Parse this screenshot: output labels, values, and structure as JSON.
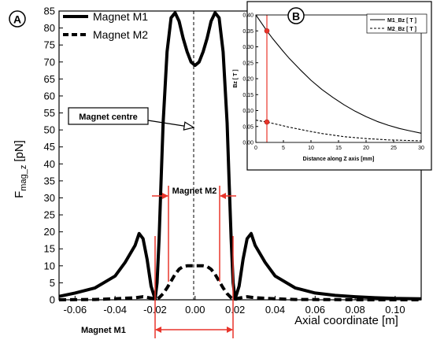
{
  "chart_data": [
    {
      "panel": "A",
      "type": "line",
      "xlabel": "Axial coordinate [m]",
      "ylabel_main": "F",
      "ylabel_sub": "mag_z",
      "ylabel_unit": "[pN]",
      "xlim": [
        -0.068,
        0.113
      ],
      "ylim": [
        0,
        85
      ],
      "x_ticks": [
        "-0.06",
        "-0.04",
        "-0.02",
        "0.00",
        "0.02",
        "0.04",
        "0.06",
        "0.08",
        "0.10"
      ],
      "x_tick_values": [
        -0.06,
        -0.04,
        -0.02,
        0.0,
        0.02,
        0.04,
        0.06,
        0.08,
        0.1
      ],
      "y_ticks": [
        "0",
        "5",
        "10",
        "15",
        "20",
        "25",
        "30",
        "35",
        "40",
        "45",
        "50",
        "55",
        "60",
        "65",
        "70",
        "75",
        "80",
        "85"
      ],
      "y_tick_values": [
        0,
        5,
        10,
        15,
        20,
        25,
        30,
        35,
        40,
        45,
        50,
        55,
        60,
        65,
        70,
        75,
        80,
        85
      ],
      "legend_position": "top-left",
      "series": [
        {
          "name": "Magnet M1",
          "style": "solid",
          "x": [
            -0.068,
            -0.06,
            -0.05,
            -0.04,
            -0.035,
            -0.03,
            -0.028,
            -0.026,
            -0.024,
            -0.022,
            -0.02,
            -0.019,
            -0.018,
            -0.017,
            -0.016,
            -0.014,
            -0.012,
            -0.01,
            -0.008,
            -0.006,
            -0.004,
            -0.002,
            0.0,
            0.002,
            0.004,
            0.006,
            0.008,
            0.01,
            0.012,
            0.014,
            0.016,
            0.017,
            0.018,
            0.019,
            0.02,
            0.022,
            0.024,
            0.026,
            0.028,
            0.03,
            0.035,
            0.04,
            0.05,
            0.06,
            0.07,
            0.08,
            0.09,
            0.1,
            0.113
          ],
          "y": [
            1,
            2,
            3.5,
            7,
            11,
            16,
            19.5,
            18,
            12,
            4,
            0.2,
            5,
            18,
            35,
            52,
            73,
            83,
            84.5,
            82,
            77,
            73,
            70,
            69,
            70,
            73,
            77,
            82,
            84.5,
            83,
            73,
            52,
            35,
            18,
            5,
            0.2,
            4,
            12,
            18,
            19.5,
            16,
            11,
            7,
            3.5,
            2,
            1.3,
            0.9,
            0.6,
            0.4,
            0.3
          ]
        },
        {
          "name": "Magnet M2",
          "style": "dashed",
          "x": [
            -0.068,
            -0.05,
            -0.04,
            -0.03,
            -0.026,
            -0.022,
            -0.02,
            -0.018,
            -0.016,
            -0.014,
            -0.012,
            -0.01,
            -0.008,
            -0.006,
            -0.004,
            -0.002,
            0.0,
            0.002,
            0.004,
            0.006,
            0.008,
            0.01,
            0.012,
            0.014,
            0.016,
            0.018,
            0.02,
            0.022,
            0.026,
            0.03,
            0.04,
            0.05,
            0.07,
            0.09,
            0.113
          ],
          "y": [
            0,
            0.1,
            0.3,
            0.6,
            0.9,
            0.5,
            0.1,
            0.6,
            1.8,
            3.5,
            5.5,
            7.5,
            9,
            9.8,
            10,
            10,
            10,
            10,
            10,
            9.8,
            9,
            7.5,
            5.5,
            3.5,
            1.8,
            0.6,
            0.1,
            0.5,
            0.9,
            0.6,
            0.3,
            0.1,
            0.05,
            0,
            0
          ]
        }
      ],
      "annotations": {
        "panel_label": "A",
        "magnet_centre": "Magnet centre",
        "magnet_m2": "Magnet M2",
        "magnet_m1": "Magnet M1"
      }
    },
    {
      "panel": "B",
      "type": "line",
      "xlabel": "Distance along Z axis [mm]",
      "ylabel": "Bz [ T ]",
      "xlim": [
        0,
        30
      ],
      "ylim": [
        0,
        0.4
      ],
      "x_ticks": [
        "0",
        "5",
        "10",
        "15",
        "20",
        "25",
        "30"
      ],
      "x_tick_values": [
        0,
        5,
        10,
        15,
        20,
        25,
        30
      ],
      "y_ticks": [
        "0.00",
        "0.05",
        "0.10",
        "0.15",
        "0.20",
        "0.25",
        "0.30",
        "0.35",
        "0.40"
      ],
      "y_tick_values": [
        0,
        0.05,
        0.1,
        0.15,
        0.2,
        0.25,
        0.3,
        0.35,
        0.4
      ],
      "legend_position": "top-right",
      "series": [
        {
          "name": "M1_Bz [ T ]",
          "style": "solid",
          "x": [
            0,
            1,
            2,
            3,
            4,
            5,
            6,
            8,
            10,
            12,
            14,
            16,
            18,
            20,
            22,
            24,
            26,
            28,
            30
          ],
          "y": [
            0.4,
            0.375,
            0.35,
            0.327,
            0.306,
            0.285,
            0.265,
            0.229,
            0.195,
            0.166,
            0.141,
            0.118,
            0.098,
            0.081,
            0.066,
            0.054,
            0.044,
            0.036,
            0.029
          ]
        },
        {
          "name": "M2_Bz [ T ]",
          "style": "dashed",
          "x": [
            0,
            1,
            2,
            4,
            6,
            8,
            10,
            12,
            14,
            16,
            18,
            20,
            22,
            24,
            26,
            28,
            30
          ],
          "y": [
            0.07,
            0.067,
            0.064,
            0.056,
            0.048,
            0.041,
            0.034,
            0.028,
            0.023,
            0.018,
            0.015,
            0.012,
            0.01,
            0.008,
            0.007,
            0.006,
            0.005
          ]
        }
      ],
      "marker_x": 2,
      "marker_points": [
        0.35,
        0.064
      ],
      "annotations": {
        "panel_label": "B"
      }
    }
  ]
}
